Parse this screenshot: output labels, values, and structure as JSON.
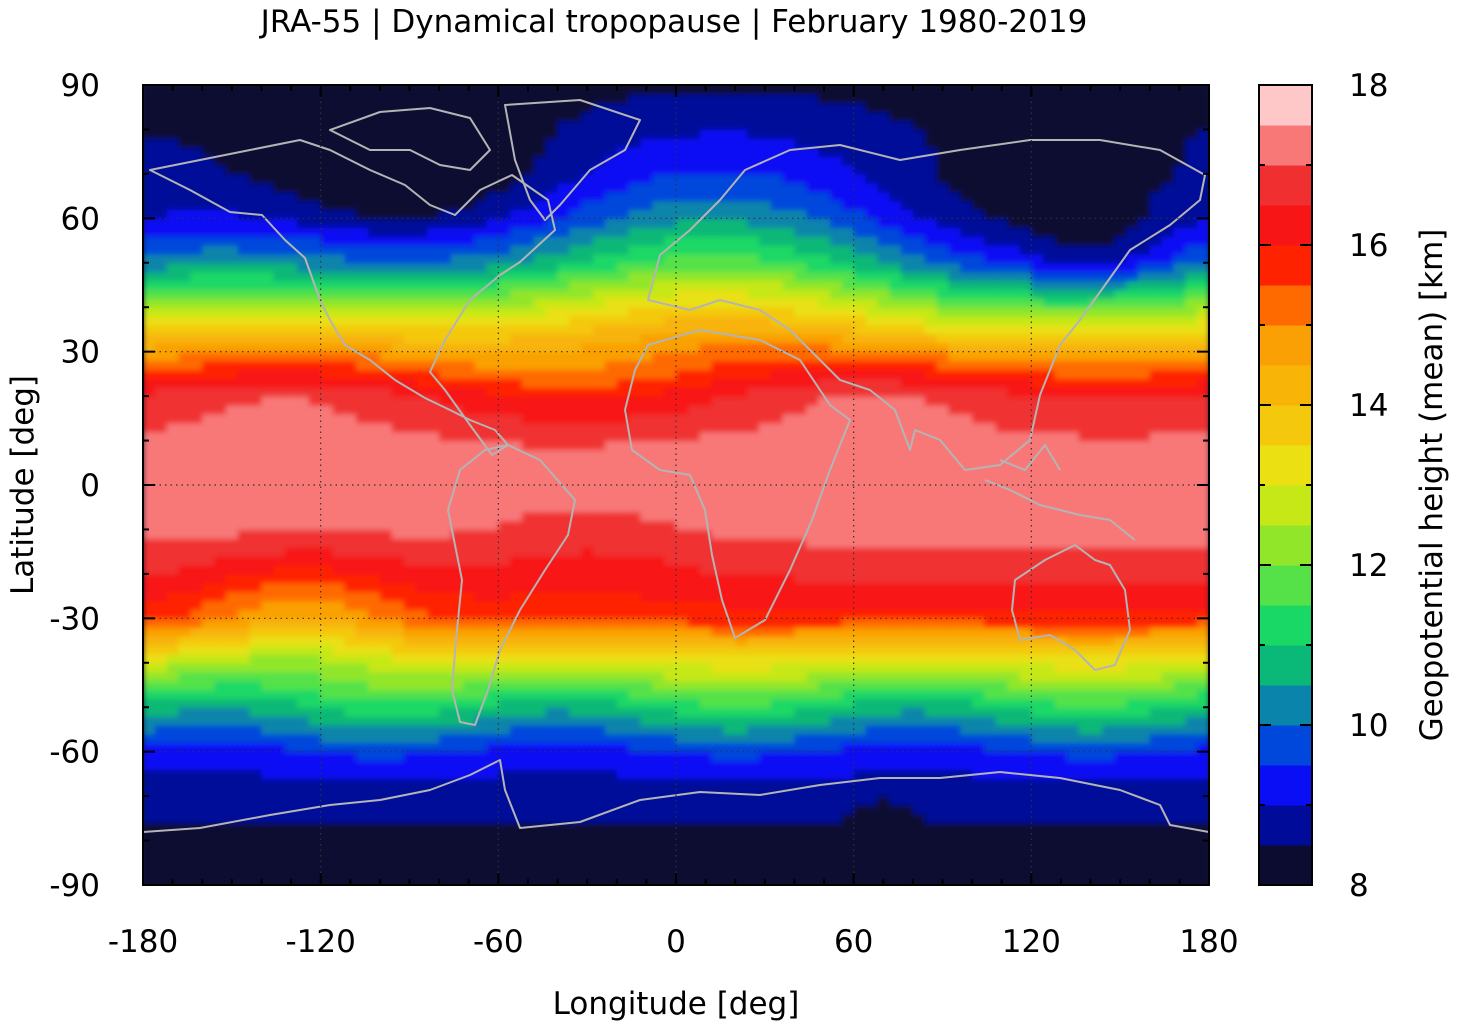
{
  "chart_data": {
    "type": "heatmap",
    "title": "JRA-55 | Dynamical tropopause | February 1980-2019",
    "xlabel": "Longitude [deg]",
    "ylabel": "Latitude [deg]",
    "colorbar_label": "Geopotential height (mean) [km]",
    "xlim": [
      -180,
      180
    ],
    "ylim": [
      -90,
      90
    ],
    "x_ticks": [
      -180,
      -120,
      -60,
      0,
      60,
      120,
      180
    ],
    "x_tick_labels": [
      "-180",
      "-120",
      "-60",
      "0",
      "60",
      "120",
      "180"
    ],
    "y_ticks": [
      90,
      60,
      30,
      0,
      -30,
      -60,
      -90
    ],
    "y_tick_labels": [
      "90",
      "60",
      "30",
      "0",
      "-30",
      "-60",
      "-90"
    ],
    "grid": "dotted, at 60 deg longitude and 30 deg latitude",
    "colorbar": {
      "range": [
        8,
        18
      ],
      "tick_values": [
        8,
        10,
        12,
        14,
        16,
        18
      ],
      "tick_labels": [
        "8",
        "10",
        "12",
        "14",
        "16",
        "18"
      ],
      "level_step": 0.5,
      "colors": [
        "#0b0c30",
        "#000c99",
        "#0a0ef5",
        "#0047dc",
        "#0a84aa",
        "#0ab877",
        "#1ad866",
        "#54e248",
        "#92e62a",
        "#c6e816",
        "#eae012",
        "#f4c80c",
        "#f8b407",
        "#faa004",
        "#ff6a00",
        "#ff2200",
        "#f81515",
        "#f03030",
        "#f87878",
        "#ffc8c8"
      ]
    },
    "field_mean_height_km_by_latitude": {
      "lat": [
        -90,
        -80,
        -70,
        -60,
        -50,
        -40,
        -30,
        -20,
        -10,
        0,
        10,
        20,
        30,
        40,
        50,
        60,
        70,
        80,
        90
      ],
      "height_km": [
        8.2,
        8.4,
        8.7,
        9.4,
        11.0,
        13.0,
        15.8,
        16.6,
        17.2,
        17.3,
        17.1,
        16.6,
        14.8,
        12.6,
        10.5,
        9.3,
        8.8,
        8.6,
        8.3
      ]
    },
    "coastlines": {
      "color": "#b4b4b4",
      "shown": true
    }
  }
}
